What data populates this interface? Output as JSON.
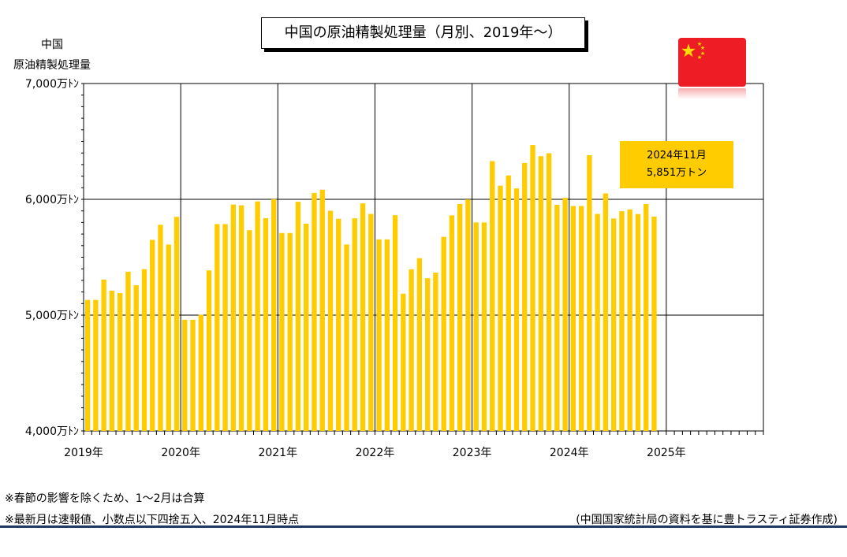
{
  "header": {
    "title": "中国の原油精製処理量（月別、2019年～）",
    "ylabel_line1": "中国",
    "ylabel_line2": "原油精製処理量"
  },
  "annotation": {
    "line1": "2024年11月",
    "line2": "5,851万トン"
  },
  "notes": {
    "note1": "※春節の影響を除くため、1～2月は合算",
    "note2": "※最新月は速報値、小数点以下四捨五入、2024年11月時点",
    "source": "(中国国家統計局の資料を基に豊トラスティ証券作成)"
  },
  "colors": {
    "bar": "#ffcc00",
    "flag_red": "#ee1c25",
    "flag_star": "#ffde00",
    "rule": "#1f3864"
  },
  "flag_icon": "china-flag-icon",
  "chart_data": {
    "type": "bar",
    "ylim": [
      4000,
      7000
    ],
    "y_unit": "万トン",
    "y_ticks": [
      4000,
      5000,
      6000,
      7000
    ],
    "y_tick_labels": [
      "4,000万ﾄﾝ",
      "5,000万ﾄﾝ",
      "6,000万ﾄﾝ",
      "7,000万ﾄﾝ"
    ],
    "x_ticks": [
      "2019年",
      "2020年",
      "2021年",
      "2022年",
      "2023年",
      "2024年",
      "2025年"
    ],
    "months_per_year": 12,
    "total_months": 84,
    "grid": true,
    "values": [
      5131,
      5131,
      5307,
      5211,
      5191,
      5375,
      5258,
      5397,
      5650,
      5780,
      5609,
      5849,
      4960,
      4960,
      5003,
      5386,
      5786,
      5786,
      5955,
      5948,
      5733,
      5982,
      5837,
      6001,
      5709,
      5709,
      5979,
      5790,
      6055,
      6083,
      5901,
      5832,
      5610,
      5836,
      5965,
      5874,
      5654,
      5654,
      5863,
      5185,
      5396,
      5492,
      5319,
      5367,
      5676,
      5861,
      5959,
      5999,
      5800,
      5800,
      6330,
      6118,
      6206,
      6094,
      6314,
      6469,
      6373,
      6398,
      5953,
      6013,
      5942,
      5942,
      6381,
      5874,
      6051,
      5834,
      5897,
      5913,
      5873,
      5959,
      5851
    ]
  }
}
